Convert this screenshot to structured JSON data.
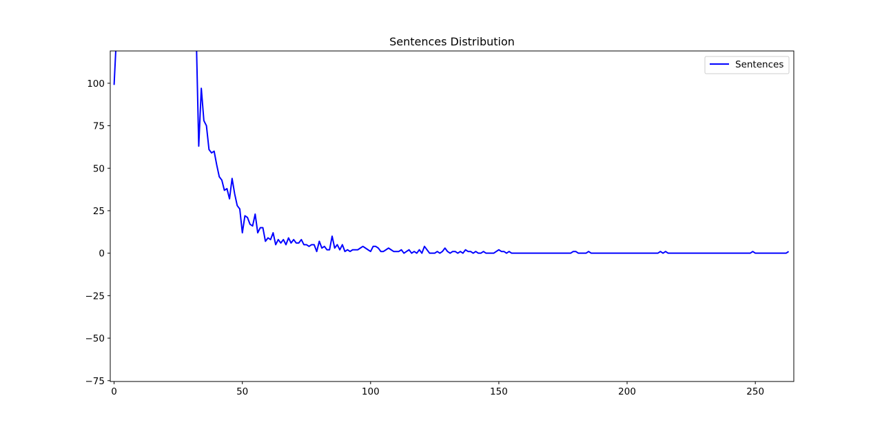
{
  "chart_data": {
    "type": "line",
    "title": "Sentences Distribution",
    "xlabel": "",
    "ylabel": "",
    "xlim": [
      -1.5,
      265
    ],
    "ylim": [
      -75.5,
      119
    ],
    "xticks": [
      0,
      50,
      100,
      150,
      200,
      250
    ],
    "xtick_labels": [
      "0",
      "50",
      "100",
      "150",
      "200",
      "250"
    ],
    "yticks": [
      -75,
      -50,
      -25,
      0,
      25,
      50,
      75,
      100
    ],
    "ytick_labels": [
      "−75",
      "−50",
      "−25",
      "0",
      "25",
      "50",
      "75",
      "100"
    ],
    "grid": false,
    "legend_position": "top-right",
    "series": [
      {
        "name": "Sentences",
        "color": "#0000ff",
        "x": [
          0,
          1,
          32,
          33,
          34,
          35,
          36,
          37,
          38,
          39,
          40,
          41,
          42,
          43,
          44,
          45,
          46,
          47,
          48,
          49,
          50,
          51,
          52,
          53,
          54,
          55,
          56,
          57,
          58,
          59,
          60,
          61,
          62,
          63,
          64,
          65,
          66,
          67,
          68,
          69,
          70,
          71,
          72,
          73,
          74,
          75,
          76,
          77,
          78,
          79,
          80,
          81,
          82,
          83,
          84,
          85,
          86,
          87,
          88,
          89,
          90,
          91,
          92,
          93,
          94,
          95,
          96,
          97,
          98,
          99,
          100,
          101,
          102,
          103,
          104,
          105,
          106,
          107,
          108,
          109,
          110,
          111,
          112,
          113,
          114,
          115,
          116,
          117,
          118,
          119,
          120,
          121,
          122,
          123,
          124,
          125,
          126,
          127,
          128,
          129,
          130,
          131,
          132,
          133,
          134,
          135,
          136,
          137,
          138,
          139,
          140,
          141,
          142,
          143,
          144,
          145,
          146,
          147,
          148,
          149,
          150,
          151,
          152,
          153,
          154,
          155,
          156,
          177,
          178,
          179,
          180,
          181,
          182,
          183,
          184,
          185,
          186,
          212,
          213,
          214,
          215,
          216,
          248,
          249,
          250,
          262,
          263
        ],
        "y": [
          99,
          130,
          130,
          63,
          97,
          78,
          75,
          61,
          59,
          60,
          52,
          45,
          43,
          37,
          38,
          32,
          44,
          35,
          28,
          26,
          12,
          22,
          21,
          17,
          16,
          23,
          12,
          15,
          15,
          7,
          9,
          8,
          12,
          5,
          8,
          6,
          8,
          5,
          9,
          6,
          8,
          6,
          6,
          8,
          5,
          5,
          4,
          5,
          5,
          1,
          7,
          3,
          4,
          2,
          2,
          10,
          3,
          5,
          2,
          5,
          1,
          2,
          1,
          2,
          2,
          2,
          3,
          4,
          3,
          2,
          1,
          4,
          4,
          3,
          1,
          1,
          2,
          3,
          2,
          1,
          1,
          1,
          2,
          0,
          1,
          2,
          0,
          1,
          0,
          2,
          0,
          4,
          2,
          0,
          0,
          0,
          1,
          0,
          1,
          3,
          1,
          0,
          1,
          1,
          0,
          1,
          0,
          2,
          1,
          1,
          0,
          1,
          0,
          0,
          1,
          0,
          0,
          0,
          0,
          1,
          2,
          1,
          1,
          0,
          1,
          0,
          0,
          0,
          0,
          1,
          1,
          0,
          0,
          0,
          0,
          1,
          0,
          0,
          1,
          0,
          1,
          0,
          0,
          1,
          0,
          0,
          1
        ]
      }
    ]
  }
}
